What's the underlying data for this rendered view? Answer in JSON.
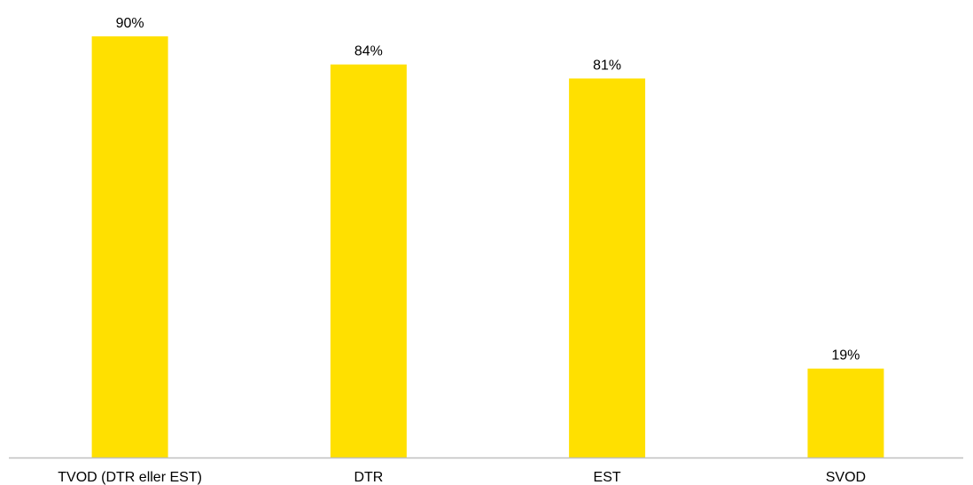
{
  "chart_data": {
    "type": "bar",
    "categories": [
      "TVOD (DTR eller EST)",
      "DTR",
      "EST",
      "SVOD"
    ],
    "values": [
      90,
      84,
      81,
      19
    ],
    "value_labels": [
      "90%",
      "84%",
      "81%",
      "19%"
    ],
    "ylim": [
      0,
      100
    ],
    "grid": false,
    "legend": "none",
    "bar_color": "#FFE000",
    "axis_color": "#BFBFBF"
  }
}
